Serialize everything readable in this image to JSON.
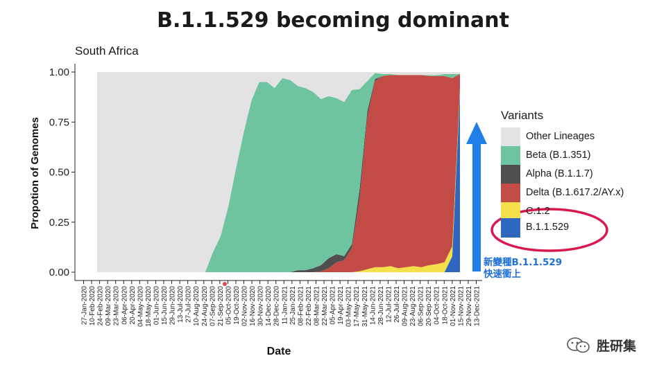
{
  "header": {
    "title": "B.1.1.529 becoming dominant"
  },
  "legend": {
    "title": "Variants",
    "items": [
      {
        "label": "Other Lineages",
        "color": "#e3e3e3"
      },
      {
        "label": "Beta (B.1.351)",
        "color": "#6ec49e"
      },
      {
        "label": "Alpha (B.1.1.7)",
        "color": "#4f4f4f"
      },
      {
        "label": "Delta (B.1.617.2/AY.x)",
        "color": "#c24b45"
      },
      {
        "label": "C.1.2",
        "color": "#f3e04a"
      },
      {
        "label": "B.1.1.529",
        "color": "#2e66c0"
      }
    ]
  },
  "annotation": {
    "line1": "新變種B.1.1.529",
    "line2": "快速衝上"
  },
  "watermark": {
    "text": "胜研集",
    "icon": "wechat-icon"
  },
  "colors": {
    "highlight_circle": "#d8184f",
    "arrow": "#1e7fe8",
    "annotation": "#1e6fd6"
  },
  "chart_data": {
    "type": "area",
    "stacked": true,
    "normalized": true,
    "subtitle": "South Africa",
    "xlabel": "Date",
    "ylabel": "Propotion of Genomes",
    "ylim": [
      0,
      1
    ],
    "yticks": [
      "0.00",
      "0.25",
      "0.50",
      "0.75",
      "1.00"
    ],
    "grid": false,
    "legend_position": "right",
    "x_tick_labels": [
      "27-Jan-2020",
      "10-Feb-2020",
      "24-Feb-2020",
      "09-Mar-2020",
      "23-Mar-2020",
      "06-Apr-2020",
      "20-Apr-2020",
      "04-May-2020",
      "18-May-2020",
      "01-Jun-2020",
      "15-Jun-2020",
      "29-Jun-2020",
      "13-Jul-2020",
      "27-Jul-2020",
      "10-Aug-2020",
      "24-Aug-2020",
      "07-Sep-2020",
      "21-Sep-2020",
      "05-Oct-2020",
      "19-Oct-2020",
      "02-Nov-2020",
      "16-Nov-2020",
      "30-Nov-2020",
      "14-Dec-2020",
      "28-Dec-2020",
      "11-Jan-2021",
      "25-Jan-2021",
      "08-Feb-2021",
      "22-Feb-2021",
      "08-Mar-2021",
      "22-Mar-2021",
      "05-Apr-2021",
      "19-Apr-2021",
      "03-May-2021",
      "17-May-2021",
      "31-May-2021",
      "14-Jun-2021",
      "28-Jun-2021",
      "12-Jul-2021",
      "26-Jul-2021",
      "09-Aug-2021",
      "23-Aug-2021",
      "06-Sep-2021",
      "20-Sep-2021",
      "04-Oct-2021",
      "18-Oct-2021",
      "01-Nov-2021",
      "15-Nov-2021",
      "29-Nov-2021",
      "13-Dec-2021"
    ],
    "x": [
      "27-Jan-2020",
      "10-Feb-2020",
      "24-Feb-2020",
      "09-Mar-2020",
      "23-Mar-2020",
      "06-Apr-2020",
      "20-Apr-2020",
      "04-May-2020",
      "18-May-2020",
      "01-Jun-2020",
      "15-Jun-2020",
      "29-Jun-2020",
      "13-Jul-2020",
      "27-Jul-2020",
      "10-Aug-2020",
      "24-Aug-2020",
      "07-Sep-2020",
      "21-Sep-2020",
      "05-Oct-2020",
      "19-Oct-2020",
      "02-Nov-2020",
      "16-Nov-2020",
      "30-Nov-2020",
      "14-Dec-2020",
      "28-Dec-2020",
      "11-Jan-2021",
      "25-Jan-2021",
      "08-Feb-2021",
      "22-Feb-2021",
      "08-Mar-2021",
      "22-Mar-2021",
      "05-Apr-2021",
      "19-Apr-2021",
      "03-May-2021",
      "17-May-2021",
      "31-May-2021",
      "14-Jun-2021",
      "28-Jun-2021",
      "12-Jul-2021",
      "26-Jul-2021",
      "09-Aug-2021",
      "23-Aug-2021",
      "06-Sep-2021",
      "20-Sep-2021",
      "04-Oct-2021",
      "18-Oct-2021",
      "01-Nov-2021",
      "15-Nov-2021"
    ],
    "series": [
      {
        "name": "B.1.1.529",
        "values": [
          0,
          0,
          0,
          0,
          0,
          0,
          0,
          0,
          0,
          0,
          0,
          0,
          0,
          0,
          0,
          0,
          0,
          0,
          0,
          0,
          0,
          0,
          0,
          0,
          0,
          0,
          0,
          0,
          0,
          0,
          0,
          0,
          0,
          0,
          0,
          0,
          0,
          0,
          0,
          0,
          0,
          0,
          0,
          0,
          0,
          0,
          0.08,
          0.9
        ]
      },
      {
        "name": "C.1.2",
        "values": [
          0,
          0,
          0,
          0,
          0,
          0,
          0,
          0,
          0,
          0,
          0,
          0,
          0,
          0,
          0,
          0,
          0,
          0,
          0,
          0,
          0,
          0,
          0,
          0,
          0,
          0,
          0,
          0,
          0,
          0,
          0,
          0,
          0,
          0,
          0.005,
          0.015,
          0.025,
          0.025,
          0.03,
          0.02,
          0.025,
          0.03,
          0.025,
          0.035,
          0.04,
          0.05,
          0.05,
          0.02
        ]
      },
      {
        "name": "Delta (B.1.617.2/AY.x)",
        "values": [
          0,
          0,
          0,
          0,
          0,
          0,
          0,
          0,
          0,
          0,
          0,
          0,
          0,
          0,
          0,
          0,
          0,
          0,
          0,
          0,
          0,
          0,
          0,
          0,
          0,
          0,
          0,
          0,
          0,
          0.005,
          0.02,
          0.05,
          0.06,
          0.12,
          0.36,
          0.76,
          0.93,
          0.955,
          0.955,
          0.965,
          0.96,
          0.955,
          0.96,
          0.945,
          0.94,
          0.93,
          0.84,
          0.07
        ]
      },
      {
        "name": "Alpha (B.1.1.7)",
        "values": [
          0,
          0,
          0,
          0,
          0,
          0,
          0,
          0,
          0,
          0,
          0,
          0,
          0,
          0,
          0,
          0,
          0,
          0,
          0,
          0,
          0,
          0,
          0,
          0,
          0,
          0,
          0.01,
          0.01,
          0.02,
          0.03,
          0.05,
          0.04,
          0.02,
          0.02,
          0.05,
          0.03,
          0.01,
          0,
          0,
          0,
          0,
          0,
          0,
          0,
          0,
          0,
          0,
          0
        ]
      },
      {
        "name": "Beta (B.1.351)",
        "values": [
          0,
          0,
          0,
          0,
          0,
          0,
          0,
          0,
          0,
          0,
          0,
          0,
          0,
          0,
          0,
          0.1,
          0.18,
          0.33,
          0.52,
          0.7,
          0.86,
          0.95,
          0.95,
          0.92,
          0.97,
          0.96,
          0.92,
          0.91,
          0.88,
          0.83,
          0.81,
          0.78,
          0.77,
          0.77,
          0.5,
          0.15,
          0.03,
          0.01,
          0.005,
          0,
          0,
          0,
          0,
          0.005,
          0.005,
          0.01,
          0.02,
          0
        ]
      },
      {
        "name": "Other Lineages",
        "values": [
          1,
          1,
          1,
          1,
          1,
          1,
          1,
          1,
          1,
          1,
          1,
          1,
          1,
          1,
          1,
          0.9,
          0.82,
          0.67,
          0.48,
          0.3,
          0.14,
          0.05,
          0.05,
          0.08,
          0.03,
          0.04,
          0.07,
          0.08,
          0.1,
          0.135,
          0.12,
          0.13,
          0.15,
          0.09,
          0.085,
          0.045,
          0.005,
          0.01,
          0.01,
          0.015,
          0.015,
          0.015,
          0.015,
          0.015,
          0.015,
          0.01,
          0.01,
          0.01
        ]
      }
    ]
  }
}
